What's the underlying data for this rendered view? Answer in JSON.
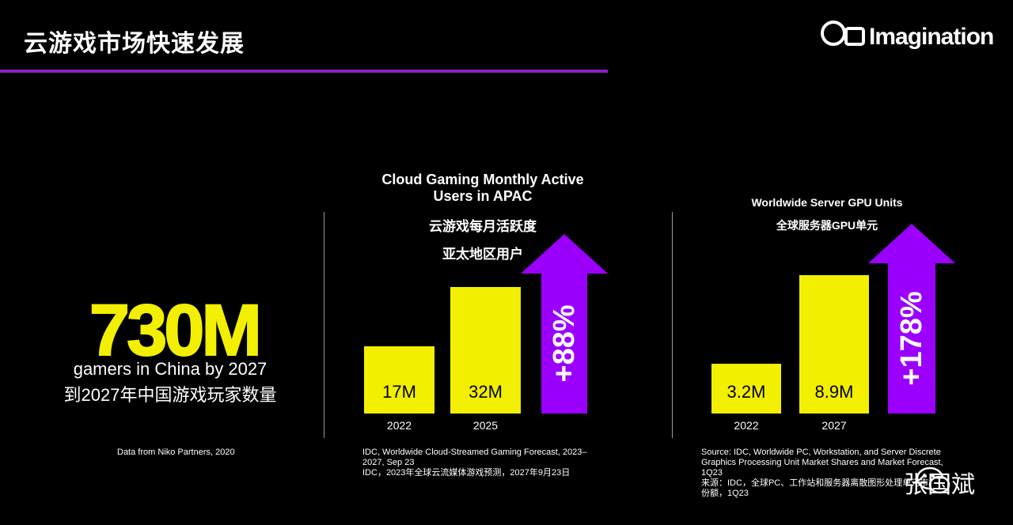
{
  "header": {
    "title": "云游戏市场快速发展",
    "brand": "Imagination"
  },
  "colors": {
    "accent_purple": "#9b00ff",
    "bar_yellow": "#f2f000",
    "rule_purple": "#8a1ec8",
    "background": "#000000"
  },
  "stat": {
    "value": "730M",
    "caption_en": "gamers in China by 2027",
    "caption_cn": "到2027年中国游戏玩家数量",
    "source": "Data from Niko Partners, 2020"
  },
  "chart_data": [
    {
      "type": "bar",
      "title": "Cloud Gaming Monthly Active Users in APAC",
      "title_cn_1": "云游戏每月活跃度",
      "title_cn_2": "亚太地区用户",
      "categories": [
        "2022",
        "2025"
      ],
      "values": [
        17,
        32
      ],
      "data_labels": [
        "17M",
        "32M"
      ],
      "unit": "M",
      "growth_label": "+88%",
      "source_lines": [
        "IDC, Worldwide Cloud-Streamed Gaming Forecast, 2023–",
        "2027, Sep 23",
        "IDC，2023年全球云流媒体游戏预测，2027年9月23日"
      ]
    },
    {
      "type": "bar",
      "title": "Worldwide Server GPU Units",
      "title_cn": "全球服务器GPU单元",
      "categories": [
        "2022",
        "2027"
      ],
      "values": [
        3.2,
        8.9
      ],
      "data_labels": [
        "3.2M",
        "8.9M"
      ],
      "unit": "M",
      "growth_label": "+178%",
      "source_lines": [
        "Source: IDC, Worldwide PC, Workstation, and Server Discrete",
        "Graphics Processing Unit Market Shares and Market Forecast,",
        "1Q23",
        "来源：IDC，全球PC、工作站和服务器离散图形处理单元市场",
        "份额，1Q23"
      ]
    }
  ],
  "watermark": {
    "text": "张国斌",
    "icon": "wechat-icon"
  }
}
